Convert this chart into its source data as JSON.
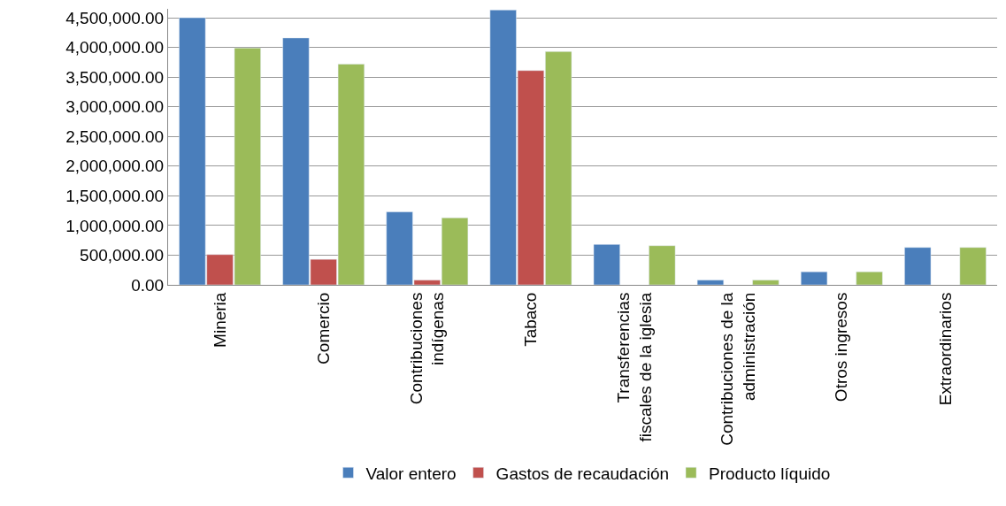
{
  "chart_data": {
    "type": "bar",
    "categories": [
      "Mineria",
      "Comercio",
      "Contribuciones\nindígenas",
      "Tabaco",
      "Transferencias\nfiscales de la iglesia",
      "Contribuciones de la\nadministración",
      "Otros ingresos",
      "Extraordinarios"
    ],
    "series": [
      {
        "name": "Valor entero",
        "color": "#4a7ebb",
        "values": [
          4500000,
          4160000,
          1230000,
          4630000,
          680000,
          80000,
          220000,
          630000
        ]
      },
      {
        "name": "Gastos de recaudación",
        "color": "#c0504d",
        "values": [
          510000,
          430000,
          80000,
          3610000,
          null,
          null,
          null,
          null
        ]
      },
      {
        "name": "Producto líquido",
        "color": "#9bbb59",
        "values": [
          3990000,
          3720000,
          1130000,
          3930000,
          660000,
          80000,
          220000,
          630000
        ]
      }
    ],
    "ylim": [
      0,
      4650000
    ],
    "yticks": [
      {
        "value": 0,
        "label": "0.00"
      },
      {
        "value": 500000,
        "label": "500,000.00"
      },
      {
        "value": 1000000,
        "label": "1,000,000.00"
      },
      {
        "value": 1500000,
        "label": "1,500,000.00"
      },
      {
        "value": 2000000,
        "label": "2,000,000.00"
      },
      {
        "value": 2500000,
        "label": "2,500,000.00"
      },
      {
        "value": 3000000,
        "label": "3,000,000.00"
      },
      {
        "value": 3500000,
        "label": "3,500,000.00"
      },
      {
        "value": 4000000,
        "label": "4,000,000.00"
      },
      {
        "value": 4500000,
        "label": "4,500,000.00"
      }
    ],
    "grid": "y",
    "legend": "bottom"
  }
}
